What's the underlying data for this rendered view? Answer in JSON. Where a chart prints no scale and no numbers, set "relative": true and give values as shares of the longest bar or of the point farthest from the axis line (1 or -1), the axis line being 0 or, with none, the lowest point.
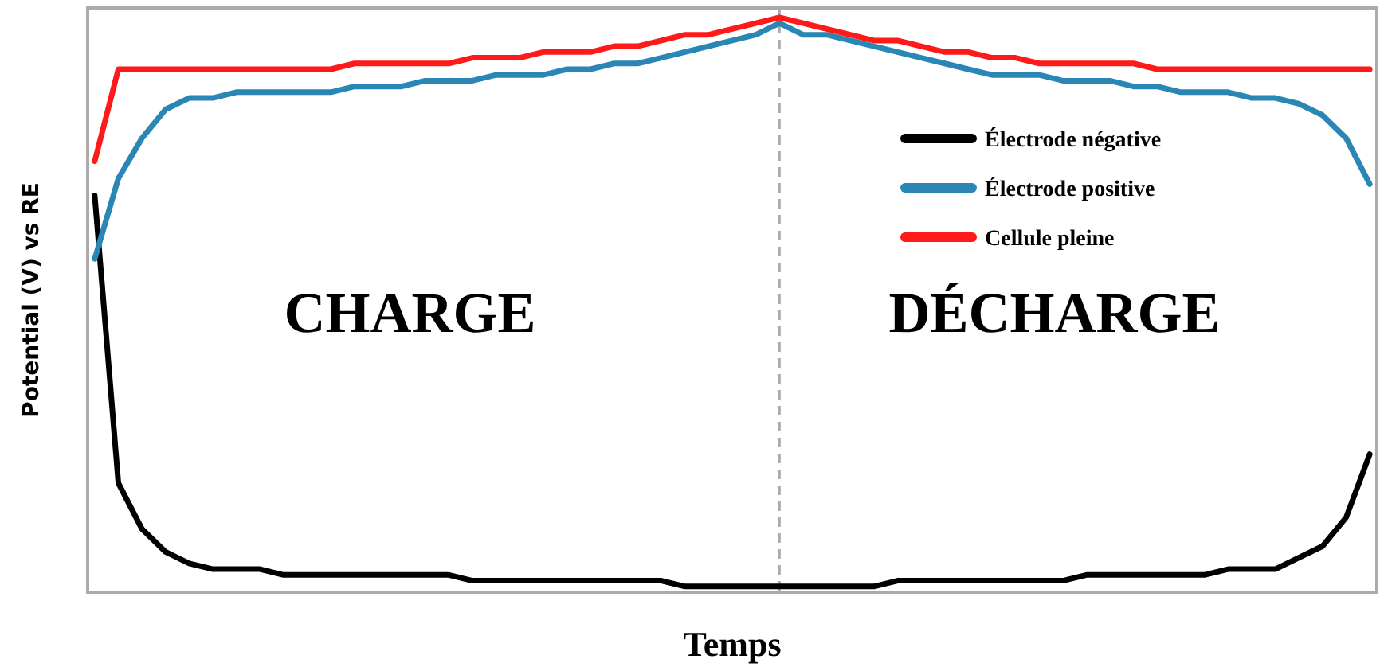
{
  "chart_data": {
    "type": "line",
    "relative": true,
    "xlabel": "Temps",
    "ylabel": "Potential (V) vs RE",
    "legend": "top right",
    "marker": "none",
    "line_style": "solid",
    "categories": [
      null,
      null,
      null,
      null,
      null,
      null,
      null,
      null,
      null,
      null,
      null,
      null,
      null,
      null,
      null,
      null,
      null,
      null,
      null,
      null,
      null,
      null,
      null,
      null,
      null,
      null,
      null,
      null,
      null,
      null,
      null,
      null,
      null,
      null,
      null,
      null,
      null,
      null,
      null,
      null,
      null,
      null,
      null,
      null,
      null,
      null,
      null,
      null,
      null,
      null,
      null,
      null,
      null,
      null,
      null
    ],
    "annotations": [
      "CHARGE",
      "DÉCHARGE"
    ],
    "series": [
      {
        "name": "Électrode négative",
        "color": "#000000",
        "values": [
          0.69,
          0.19,
          0.11,
          0.07,
          0.05,
          0.04,
          0.04,
          0.04,
          0.03,
          0.03,
          0.03,
          0.03,
          0.03,
          0.03,
          0.03,
          0.03,
          0.02,
          0.02,
          0.02,
          0.02,
          0.02,
          0.02,
          0.02,
          0.02,
          0.02,
          0.01,
          0.01,
          0.01,
          0.01,
          0.01,
          0.01,
          0.01,
          0.01,
          0.01,
          0.02,
          0.02,
          0.02,
          0.02,
          0.02,
          0.02,
          0.02,
          0.02,
          0.03,
          0.03,
          0.03,
          0.03,
          0.03,
          0.03,
          0.04,
          0.04,
          0.04,
          0.06,
          0.08,
          0.13,
          0.24
        ]
      },
      {
        "name": "Électrode positive",
        "color": "#2a86b5",
        "values": [
          0.58,
          0.72,
          0.79,
          0.84,
          0.86,
          0.86,
          0.87,
          0.87,
          0.87,
          0.87,
          0.87,
          0.88,
          0.88,
          0.88,
          0.89,
          0.89,
          0.89,
          0.9,
          0.9,
          0.9,
          0.91,
          0.91,
          0.92,
          0.92,
          0.93,
          0.94,
          0.95,
          0.96,
          0.97,
          0.99,
          0.97,
          0.97,
          0.96,
          0.95,
          0.94,
          0.93,
          0.92,
          0.91,
          0.9,
          0.9,
          0.9,
          0.89,
          0.89,
          0.89,
          0.88,
          0.88,
          0.87,
          0.87,
          0.87,
          0.86,
          0.86,
          0.85,
          0.83,
          0.79,
          0.71
        ]
      },
      {
        "name": "Cellule pleine",
        "color": "#ff1a1a",
        "values": [
          0.75,
          0.91,
          0.91,
          0.91,
          0.91,
          0.91,
          0.91,
          0.91,
          0.91,
          0.91,
          0.91,
          0.92,
          0.92,
          0.92,
          0.92,
          0.92,
          0.93,
          0.93,
          0.93,
          0.94,
          0.94,
          0.94,
          0.95,
          0.95,
          0.96,
          0.97,
          0.97,
          0.98,
          0.99,
          1,
          0.99,
          0.98,
          0.97,
          0.96,
          0.96,
          0.95,
          0.94,
          0.94,
          0.93,
          0.93,
          0.92,
          0.92,
          0.92,
          0.92,
          0.92,
          0.91,
          0.91,
          0.91,
          0.91,
          0.91,
          0.91,
          0.91,
          0.91,
          0.91,
          0.91
        ]
      }
    ]
  }
}
